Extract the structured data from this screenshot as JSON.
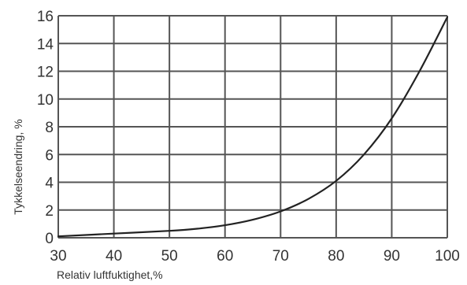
{
  "chart_data": {
    "type": "line",
    "xlabel": "Relativ luftfuktighet,%",
    "ylabel": "Tykkelseendring, %",
    "xlim": [
      30,
      100
    ],
    "ylim": [
      0,
      16
    ],
    "xticks": [
      30,
      40,
      50,
      60,
      70,
      80,
      90,
      100
    ],
    "yticks": [
      0,
      2,
      4,
      6,
      8,
      10,
      12,
      14,
      16
    ],
    "grid": true,
    "series": [
      {
        "x": [
          30,
          40,
          50,
          55,
          60,
          65,
          70,
          75,
          80,
          85,
          90,
          95,
          100
        ],
        "y": [
          0.1,
          0.3,
          0.5,
          0.65,
          0.9,
          1.3,
          1.9,
          2.8,
          4.1,
          6.0,
          8.6,
          12.0,
          15.9
        ]
      }
    ],
    "colors": {
      "grid": "#555555",
      "line": "#222222",
      "text": "#333333"
    }
  }
}
